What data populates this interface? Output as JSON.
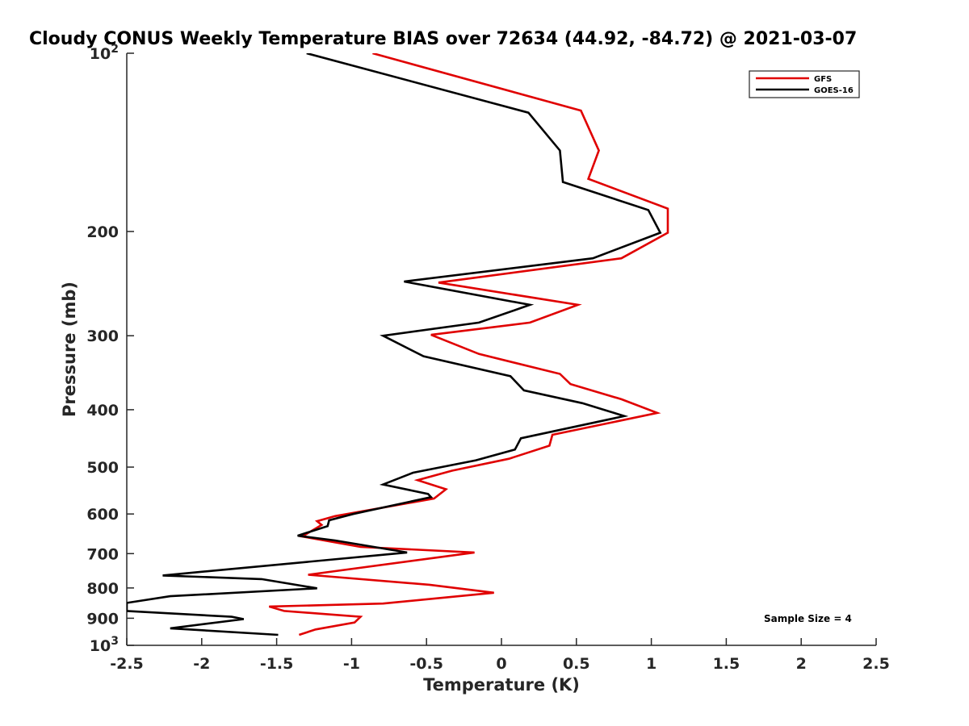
{
  "chart_data": {
    "type": "line",
    "title": "Cloudy CONUS Weekly Temperature BIAS over 72634 (44.92, -84.72) @ 2021-03-07",
    "xlabel": "Temperature (K)",
    "ylabel": "Pressure (mb)",
    "xlim": [
      -2.5,
      2.5
    ],
    "ylim": [
      100,
      1000
    ],
    "y_scale": "log",
    "y_reversed": true,
    "grid": false,
    "legend_position": "top-right",
    "x_ticks": [
      -2.5,
      -2,
      -1.5,
      -1,
      -0.5,
      0,
      0.5,
      1,
      1.5,
      2,
      2.5
    ],
    "x_tick_labels": [
      "-2.5",
      "-2",
      "-1.5",
      "-1",
      "-0.5",
      "0",
      "0.5",
      "1",
      "1.5",
      "2",
      "2.5"
    ],
    "y_ticks": [
      100,
      200,
      300,
      400,
      500,
      600,
      700,
      800,
      900,
      1000
    ],
    "y_tick_labels": [
      {
        "base": "10",
        "exp": "2"
      },
      {
        "base": "200",
        "exp": ""
      },
      {
        "base": "300",
        "exp": ""
      },
      {
        "base": "400",
        "exp": ""
      },
      {
        "base": "500",
        "exp": ""
      },
      {
        "base": "600",
        "exp": ""
      },
      {
        "base": "700",
        "exp": ""
      },
      {
        "base": "800",
        "exp": ""
      },
      {
        "base": "900",
        "exp": ""
      },
      {
        "base": "10",
        "exp": "3"
      }
    ],
    "annotation": "Sample Size = 4",
    "series": [
      {
        "name": "GFS",
        "color": "#e00000",
        "points": [
          [
            -0.86,
            100
          ],
          [
            0.53,
            125
          ],
          [
            0.65,
            146
          ],
          [
            0.58,
            163
          ],
          [
            1.11,
            183
          ],
          [
            1.11,
            201
          ],
          [
            0.8,
            222
          ],
          [
            -0.42,
            244
          ],
          [
            0.51,
            266
          ],
          [
            0.19,
            285
          ],
          [
            -0.47,
            299
          ],
          [
            -0.15,
            322
          ],
          [
            0.39,
            348
          ],
          [
            0.46,
            362
          ],
          [
            0.8,
            384
          ],
          [
            1.04,
            405
          ],
          [
            0.34,
            441
          ],
          [
            0.32,
            460
          ],
          [
            0.05,
            484
          ],
          [
            -0.33,
            507
          ],
          [
            -0.56,
            526
          ],
          [
            -0.37,
            545
          ],
          [
            -0.45,
            565
          ],
          [
            -1.11,
            605
          ],
          [
            -1.23,
            617
          ],
          [
            -1.2,
            626
          ],
          [
            -1.33,
            655
          ],
          [
            -0.94,
            682
          ],
          [
            -0.18,
            697
          ],
          [
            -1.29,
            760
          ],
          [
            -0.48,
            790
          ],
          [
            -0.05,
            815
          ],
          [
            -0.79,
            850
          ],
          [
            -1.55,
            860
          ],
          [
            -1.45,
            875
          ],
          [
            -0.94,
            895
          ],
          [
            -0.98,
            915
          ],
          [
            -1.24,
            940
          ],
          [
            -1.35,
            960
          ]
        ]
      },
      {
        "name": "GOES-16",
        "color": "#000000",
        "points": [
          [
            -1.3,
            100
          ],
          [
            0.18,
            126
          ],
          [
            0.39,
            146
          ],
          [
            0.41,
            165
          ],
          [
            0.98,
            184
          ],
          [
            1.06,
            201
          ],
          [
            0.61,
            222
          ],
          [
            -0.65,
            243
          ],
          [
            0.19,
            266
          ],
          [
            -0.15,
            285
          ],
          [
            -0.79,
            300
          ],
          [
            -0.52,
            325
          ],
          [
            0.06,
            351
          ],
          [
            0.15,
            371
          ],
          [
            0.54,
            390
          ],
          [
            0.82,
            410
          ],
          [
            0.13,
            447
          ],
          [
            0.09,
            467
          ],
          [
            -0.17,
            487
          ],
          [
            -0.59,
            511
          ],
          [
            -0.79,
            535
          ],
          [
            -0.49,
            555
          ],
          [
            -0.47,
            562
          ],
          [
            -0.99,
            600
          ],
          [
            -1.15,
            615
          ],
          [
            -1.16,
            629
          ],
          [
            -1.36,
            653
          ],
          [
            -1.11,
            665
          ],
          [
            -0.63,
            697
          ],
          [
            -2.26,
            762
          ],
          [
            -1.6,
            773
          ],
          [
            -1.23,
            801
          ],
          [
            -2.21,
            826
          ],
          [
            -2.5,
            848
          ],
          [
            -2.5,
            875
          ],
          [
            -1.8,
            895
          ],
          [
            -1.72,
            903
          ],
          [
            -2.21,
            936
          ],
          [
            -1.49,
            960
          ]
        ]
      }
    ]
  }
}
